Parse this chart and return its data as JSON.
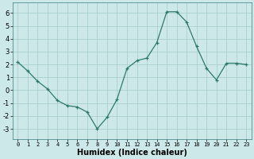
{
  "x": [
    0,
    1,
    2,
    3,
    4,
    5,
    6,
    7,
    8,
    9,
    10,
    11,
    12,
    13,
    14,
    15,
    16,
    17,
    18,
    19,
    20,
    21,
    22,
    23
  ],
  "y": [
    2.2,
    1.5,
    0.7,
    0.1,
    -0.8,
    -1.2,
    -1.3,
    -1.7,
    -3.0,
    -2.1,
    -0.7,
    1.7,
    2.3,
    2.5,
    3.7,
    6.1,
    6.1,
    5.3,
    3.4,
    1.7,
    0.8,
    2.1,
    2.1,
    2.0
  ],
  "line_color": "#2d7a6a",
  "marker_color": "#2d7a6a",
  "bg_color": "#cce8e8",
  "grid_color": "#b0d0d0",
  "xlabel": "Humidex (Indice chaleur)",
  "xlabel_fontsize": 7.0,
  "xtick_fontsize": 5.0,
  "ytick_fontsize": 6.0,
  "ylabel_ticks": [
    -3,
    -2,
    -1,
    0,
    1,
    2,
    3,
    4,
    5,
    6
  ],
  "ylim": [
    -3.8,
    6.8
  ],
  "xlim": [
    -0.5,
    23.5
  ]
}
